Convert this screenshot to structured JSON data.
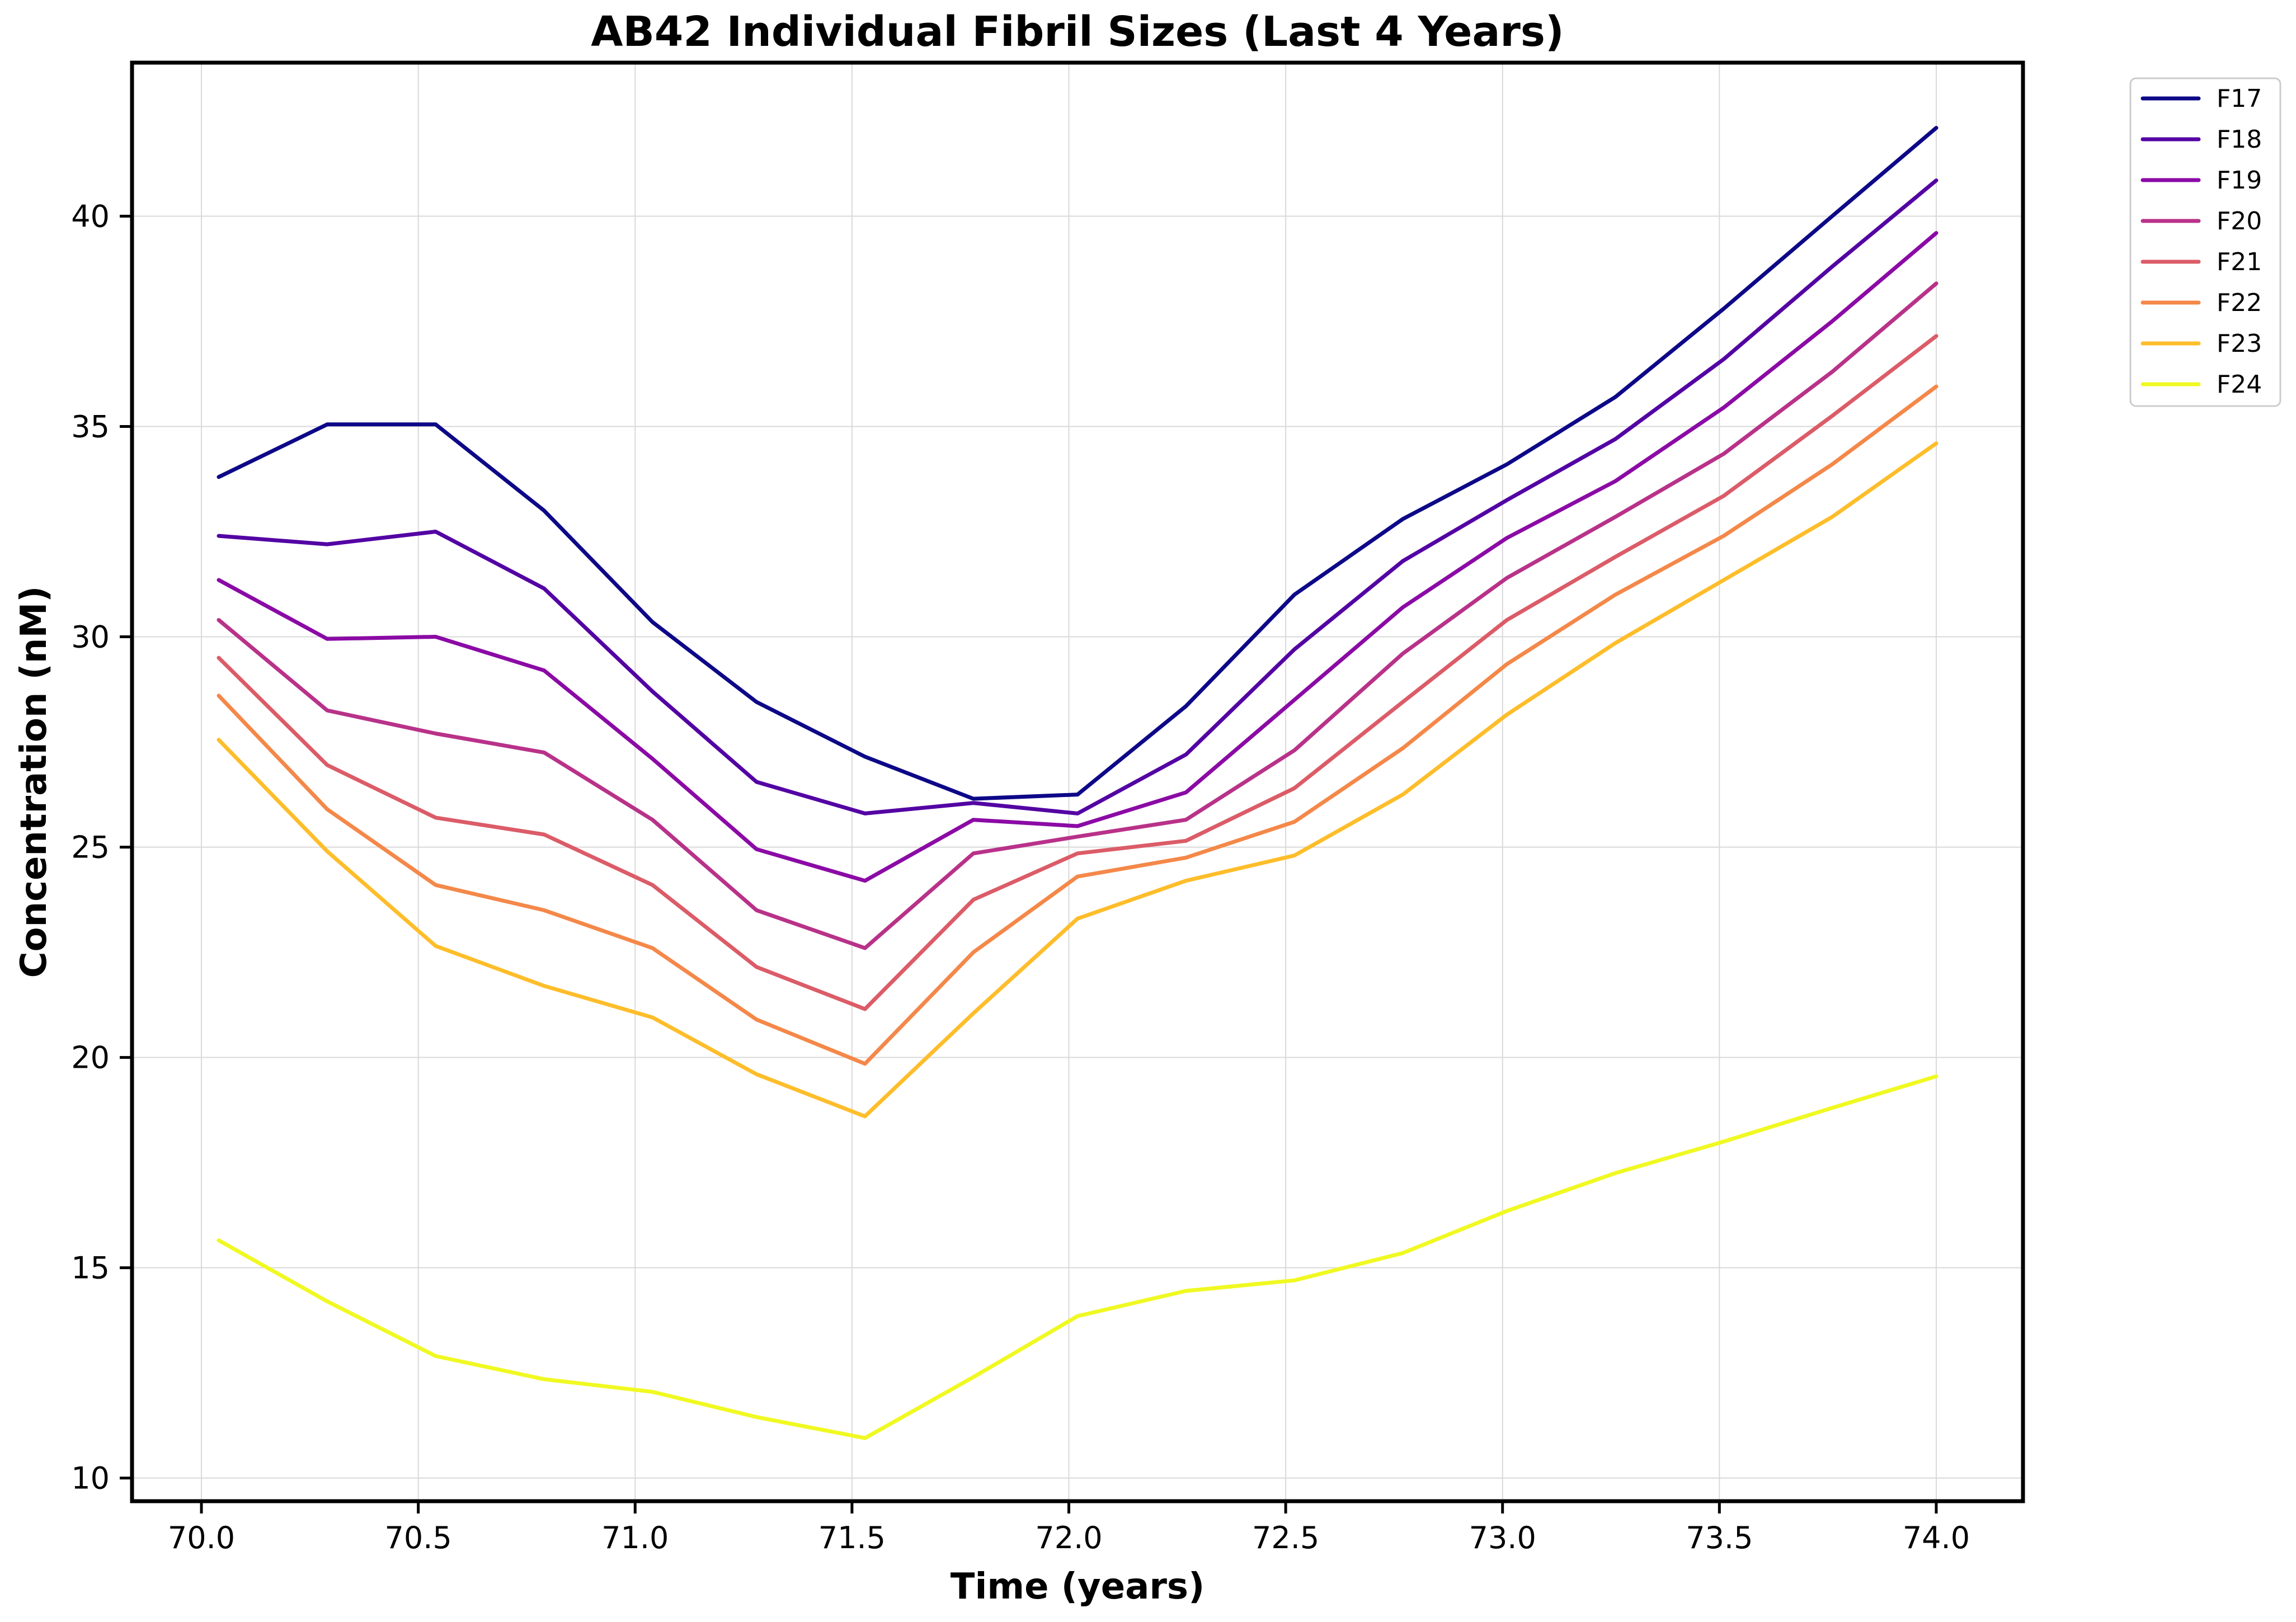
{
  "chart_data": {
    "type": "line",
    "title": "AB42 Individual Fibril Sizes (Last 4 Years)",
    "xlabel": "Time (years)",
    "ylabel": "Concentration (nM)",
    "xlim": [
      69.84,
      74.2
    ],
    "ylim": [
      9.45,
      43.65
    ],
    "xticks": [
      70.0,
      70.5,
      71.0,
      71.5,
      72.0,
      72.5,
      73.0,
      73.5,
      74.0
    ],
    "xtick_labels": [
      "70.0",
      "70.5",
      "71.0",
      "71.5",
      "72.0",
      "72.5",
      "73.0",
      "73.5",
      "74.0"
    ],
    "yticks": [
      10,
      15,
      20,
      25,
      30,
      35,
      40
    ],
    "ytick_labels": [
      "10",
      "15",
      "20",
      "25",
      "30",
      "35",
      "40"
    ],
    "grid": true,
    "legend_position": "outside-top-right",
    "x": [
      70.04,
      70.29,
      70.54,
      70.79,
      71.04,
      71.28,
      71.53,
      71.78,
      72.02,
      72.27,
      72.52,
      72.77,
      73.01,
      73.26,
      73.51,
      73.76,
      74.0
    ],
    "series": [
      {
        "name": "F17",
        "color": "#0d0887",
        "values": [
          33.8,
          35.05,
          35.05,
          33.0,
          30.35,
          28.45,
          27.15,
          26.15,
          26.25,
          28.35,
          31.0,
          32.8,
          34.1,
          35.7,
          37.8,
          40.0,
          42.1
        ]
      },
      {
        "name": "F18",
        "color": "#5302a3",
        "values": [
          32.4,
          32.2,
          32.5,
          31.15,
          28.7,
          26.55,
          25.8,
          26.05,
          25.8,
          27.2,
          29.7,
          31.8,
          33.25,
          34.7,
          36.6,
          38.8,
          40.85
        ]
      },
      {
        "name": "F19",
        "color": "#8b0aa5",
        "values": [
          31.35,
          29.95,
          30.0,
          29.2,
          27.1,
          24.95,
          24.2,
          25.65,
          25.5,
          26.3,
          28.5,
          30.7,
          32.35,
          33.7,
          35.45,
          37.5,
          39.6
        ]
      },
      {
        "name": "F20",
        "color": "#b83289",
        "values": [
          30.4,
          28.25,
          27.7,
          27.25,
          25.65,
          23.5,
          22.6,
          24.85,
          25.25,
          25.65,
          27.3,
          29.6,
          31.4,
          32.85,
          34.35,
          36.3,
          38.4
        ]
      },
      {
        "name": "F21",
        "color": "#db5c68",
        "values": [
          29.5,
          26.95,
          25.7,
          25.3,
          24.1,
          22.15,
          21.15,
          23.75,
          24.85,
          25.15,
          26.4,
          28.45,
          30.4,
          31.9,
          33.35,
          35.25,
          37.15
        ]
      },
      {
        "name": "F22",
        "color": "#f48849",
        "values": [
          28.6,
          25.9,
          24.1,
          23.5,
          22.6,
          20.9,
          19.85,
          22.5,
          24.3,
          24.75,
          25.6,
          27.35,
          29.35,
          31.0,
          32.4,
          34.1,
          35.95
        ]
      },
      {
        "name": "F23",
        "color": "#febd2a",
        "values": [
          27.55,
          24.9,
          22.65,
          21.7,
          20.95,
          19.6,
          18.6,
          21.05,
          23.3,
          24.2,
          24.8,
          26.25,
          28.15,
          29.85,
          31.35,
          32.85,
          34.6
        ]
      },
      {
        "name": "F24",
        "color": "#f0f921",
        "values": [
          15.65,
          14.2,
          12.9,
          12.35,
          12.05,
          11.45,
          10.95,
          12.4,
          13.85,
          14.45,
          14.7,
          15.35,
          16.35,
          17.25,
          18.0,
          18.8,
          19.55
        ]
      }
    ]
  }
}
